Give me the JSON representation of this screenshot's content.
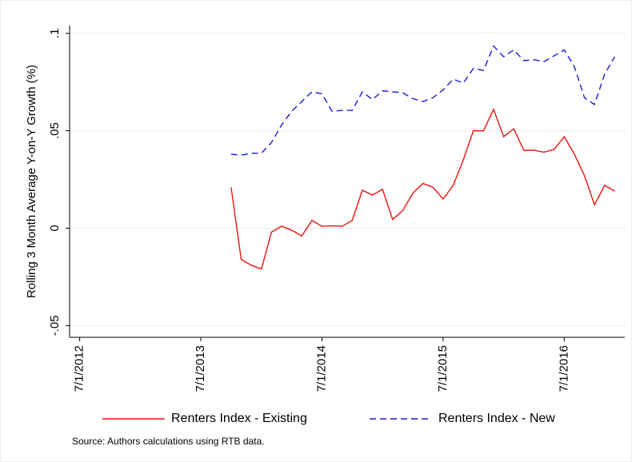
{
  "chart_data": {
    "type": "line",
    "y_label": "Rolling 3 Month Average Y-on-Y Growth (%)",
    "note": "Source: Authors calculations using RTB data.",
    "x": [
      "10/1/2013",
      "11/1/2013",
      "12/1/2013",
      "1/1/2014",
      "2/1/2014",
      "3/1/2014",
      "4/1/2014",
      "5/1/2014",
      "6/1/2014",
      "7/1/2014",
      "8/1/2014",
      "9/1/2014",
      "10/1/2014",
      "11/1/2014",
      "12/1/2014",
      "1/1/2015",
      "2/1/2015",
      "3/1/2015",
      "4/1/2015",
      "5/1/2015",
      "6/1/2015",
      "7/1/2015",
      "8/1/2015",
      "9/1/2015",
      "10/1/2015",
      "11/1/2015",
      "12/1/2015",
      "1/1/2016",
      "2/1/2016",
      "3/1/2016",
      "4/1/2016",
      "5/1/2016",
      "6/1/2016",
      "7/1/2016",
      "8/1/2016",
      "9/1/2016",
      "10/1/2016",
      "11/1/2016",
      "12/1/2016"
    ],
    "series": [
      {
        "name": "Renters Index - Existing",
        "color": "#e8140c",
        "dash": "solid",
        "values": [
          0.021,
          -0.016,
          -0.019,
          -0.021,
          -0.002,
          0.001,
          -0.001,
          -0.004,
          0.004,
          0.001,
          0.0012,
          0.001,
          0.004,
          0.0195,
          0.017,
          0.02,
          0.0045,
          0.009,
          0.018,
          0.023,
          0.021,
          0.015,
          0.022,
          0.035,
          0.05,
          0.05,
          0.061,
          0.047,
          0.051,
          0.04,
          0.04,
          0.039,
          0.0405,
          0.047,
          0.038,
          0.027,
          0.012,
          0.022,
          0.019
        ]
      },
      {
        "name": "Renters Index - New",
        "color": "#1a1ad6",
        "dash": "dashed",
        "values": [
          0.038,
          0.0375,
          0.0385,
          0.0385,
          0.044,
          0.053,
          0.06,
          0.065,
          0.07,
          0.069,
          0.06,
          0.0605,
          0.0605,
          0.07,
          0.066,
          0.0705,
          0.07,
          0.0695,
          0.0665,
          0.065,
          0.067,
          0.071,
          0.0765,
          0.0745,
          0.082,
          0.081,
          0.0935,
          0.088,
          0.0915,
          0.086,
          0.0865,
          0.0855,
          0.0885,
          0.0915,
          0.083,
          0.067,
          0.0635,
          0.079,
          0.088
        ]
      }
    ],
    "xlim": [
      "6/1/2012",
      "1/1/2017"
    ],
    "xticks": [
      "7/1/2012",
      "7/1/2013",
      "7/1/2014",
      "7/1/2015",
      "7/1/2016"
    ],
    "ylim": [
      -0.056,
      0.104
    ],
    "yticks": [
      {
        "value": -0.05,
        "label": "-.05"
      },
      0,
      {
        "value": 0.05,
        "label": ".05"
      },
      {
        "value": 0.1,
        "label": ".1"
      }
    ],
    "grid": true
  }
}
